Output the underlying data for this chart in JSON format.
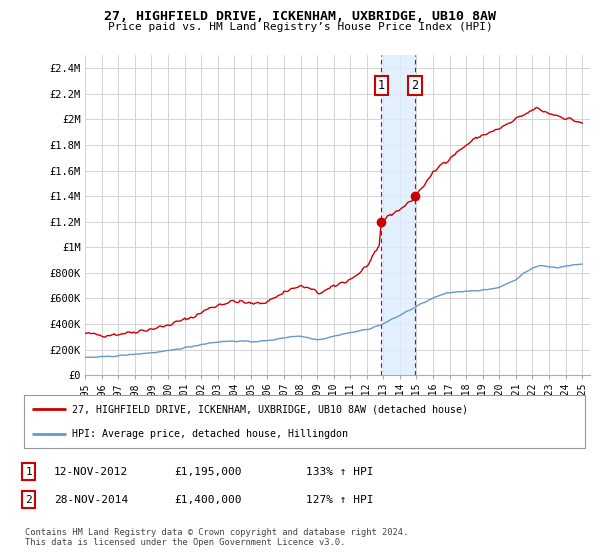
{
  "title": "27, HIGHFIELD DRIVE, ICKENHAM, UXBRIDGE, UB10 8AW",
  "subtitle": "Price paid vs. HM Land Registry’s House Price Index (HPI)",
  "ylabel_ticks": [
    "£0",
    "£200K",
    "£400K",
    "£600K",
    "£800K",
    "£1M",
    "£1.2M",
    "£1.4M",
    "£1.6M",
    "£1.8M",
    "£2M",
    "£2.2M",
    "£2.4M"
  ],
  "ytick_values": [
    0,
    200000,
    400000,
    600000,
    800000,
    1000000,
    1200000,
    1400000,
    1600000,
    1800000,
    2000000,
    2200000,
    2400000
  ],
  "ylim": [
    0,
    2500000
  ],
  "xlim_start": 1995.0,
  "xlim_end": 2025.5,
  "red_line_color": "#cc0000",
  "blue_line_color": "#6699cc",
  "marker_color": "#cc0000",
  "transaction1_x": 2012.87,
  "transaction1_y": 1195000,
  "transaction2_x": 2014.91,
  "transaction2_y": 1400000,
  "legend_label_red": "27, HIGHFIELD DRIVE, ICKENHAM, UXBRIDGE, UB10 8AW (detached house)",
  "legend_label_blue": "HPI: Average price, detached house, Hillingdon",
  "table_rows": [
    {
      "num": "1",
      "date": "12-NOV-2012",
      "price": "£1,195,000",
      "hpi": "133% ↑ HPI"
    },
    {
      "num": "2",
      "date": "28-NOV-2014",
      "price": "£1,400,000",
      "hpi": "127% ↑ HPI"
    }
  ],
  "footnote": "Contains HM Land Registry data © Crown copyright and database right 2024.\nThis data is licensed under the Open Government Licence v3.0.",
  "background_color": "#ffffff",
  "grid_color": "#cccccc",
  "shade_color": "#ddeeff"
}
